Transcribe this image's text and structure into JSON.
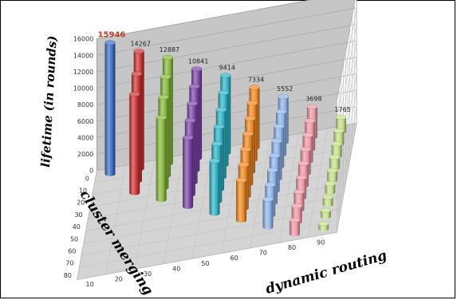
{
  "chart_data": {
    "type": "bar",
    "subtype": "3d-cylinder",
    "title": "",
    "zlabel": "lifetime (in rounds)",
    "ylabel": "cluster merging",
    "xlabel": "dynamic routing",
    "zlim": [
      0,
      16000
    ],
    "z_ticks": [
      0,
      2000,
      4000,
      6000,
      8000,
      10000,
      12000,
      14000,
      16000
    ],
    "cluster_merging_ticks": [
      0,
      10,
      20,
      30,
      40,
      50,
      60,
      70,
      80
    ],
    "dynamic_routing_ticks": [
      10,
      20,
      30,
      40,
      50,
      60,
      70,
      80,
      90
    ],
    "grid": true,
    "series": [
      {
        "dynamic_routing": 10,
        "color": "#3a6fc4",
        "values": [
          15946
        ]
      },
      {
        "dynamic_routing": 20,
        "color": "#cc3333",
        "values": [
          14267,
          13000,
          12000
        ]
      },
      {
        "dynamic_routing": 30,
        "color": "#86b83a",
        "values": [
          12887,
          12000,
          11000,
          10000
        ]
      },
      {
        "dynamic_routing": 40,
        "color": "#7c45a8",
        "values": [
          10841,
          10200,
          9600,
          9000,
          8400
        ]
      },
      {
        "dynamic_routing": 50,
        "color": "#2fb3c7",
        "values": [
          9414,
          8800,
          8200,
          7600,
          7000,
          6400
        ]
      },
      {
        "dynamic_routing": 60,
        "color": "#f08a24",
        "values": [
          7334,
          6900,
          6500,
          6100,
          5700,
          5300,
          4900
        ]
      },
      {
        "dynamic_routing": 70,
        "color": "#8fb4ea",
        "values": [
          5552,
          5200,
          4900,
          4600,
          4300,
          4000,
          3700,
          3400
        ]
      },
      {
        "dynamic_routing": 80,
        "color": "#ef98a8",
        "values": [
          3698,
          3450,
          3200,
          2950,
          2700,
          2450,
          2200,
          1950,
          1700
        ]
      },
      {
        "dynamic_routing": 90,
        "color": "#c6e08a",
        "values": [
          1765,
          1620,
          1480,
          1340,
          1200,
          1060,
          920,
          780,
          640
        ]
      }
    ],
    "data_labels": [
      "15946",
      "14267",
      "12887",
      "10841",
      "9414",
      "7334",
      "5552",
      "3698",
      "1765"
    ]
  }
}
